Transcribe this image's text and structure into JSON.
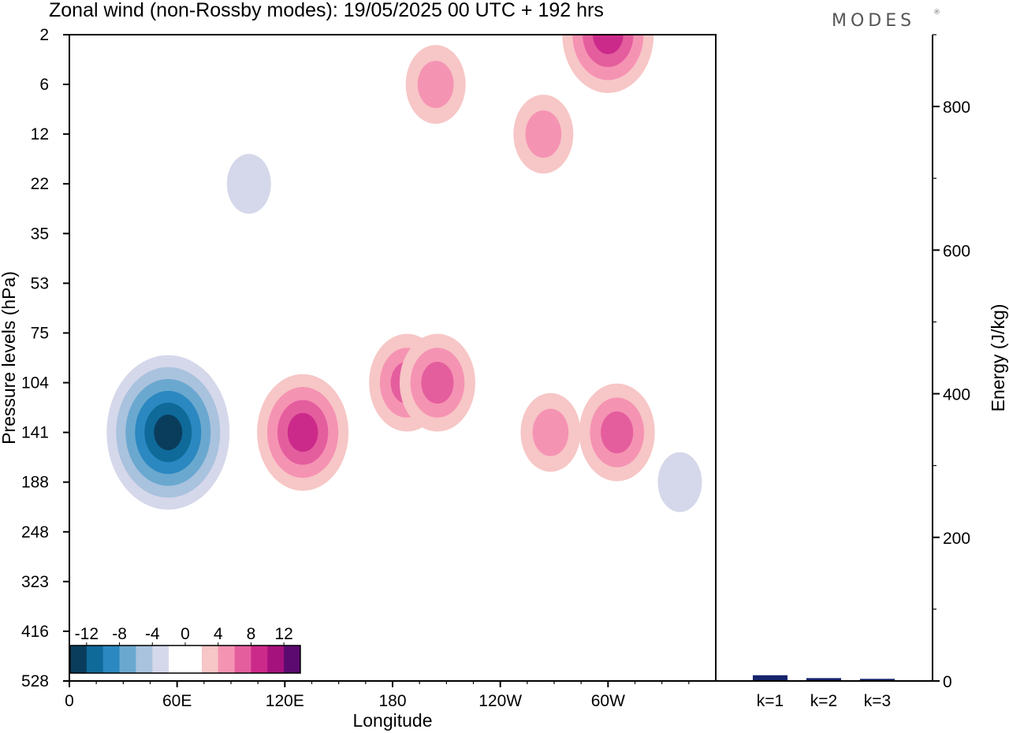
{
  "header": {
    "title": "Zonal wind (non-Rossby modes):  19/05/2025  00 UTC  + 192 hrs",
    "brand": "MODES",
    "brand_mark": "®"
  },
  "chart_data": [
    {
      "type": "heatmap",
      "title": "Zonal wind (non-Rossby modes):  19/05/2025  00 UTC  + 192 hrs",
      "xlabel": "Longitude",
      "ylabel": "Pressure levels (hPa)",
      "x_ticks": [
        "0",
        "60E",
        "120E",
        "180",
        "120W",
        "60W"
      ],
      "x_tick_values": [
        0,
        60,
        120,
        180,
        240,
        300
      ],
      "xlim": [
        0,
        360
      ],
      "y_ticks": [
        "2",
        "6",
        "12",
        "22",
        "35",
        "53",
        "75",
        "104",
        "141",
        "188",
        "248",
        "323",
        "416",
        "528"
      ],
      "y_scale": "categorical pressure levels, top to bottom",
      "colorbar": {
        "labels": [
          "-12",
          "-8",
          "-4",
          "0",
          "4",
          "8",
          "12"
        ],
        "levels": [
          -14,
          -12,
          -10,
          -8,
          -6,
          -4,
          -2,
          2,
          4,
          6,
          8,
          10,
          12,
          14
        ],
        "colors": [
          "#0a3d5c",
          "#0f6a9a",
          "#2b88c0",
          "#6aa8cf",
          "#a9c2de",
          "#d5d8ea",
          "#ffffff",
          "#ffffff",
          "#f7c6c6",
          "#f593b3",
          "#e45e9e",
          "#cc2a8a",
          "#a5127d",
          "#5c0a70"
        ],
        "position": "bottom-left inside plot"
      },
      "features": [
        {
          "lon": 55,
          "level": "141",
          "value": -14
        },
        {
          "lon": 100,
          "level": "22",
          "value": -4
        },
        {
          "lon": 300,
          "level": "2",
          "value": 10
        },
        {
          "lon": 130,
          "level": "141",
          "value": 10
        },
        {
          "lon": 188,
          "level": "104",
          "value": 8
        },
        {
          "lon": 205,
          "level": "104",
          "value": 8
        },
        {
          "lon": 268,
          "level": "141",
          "value": 6
        },
        {
          "lon": 305,
          "level": "141",
          "value": 8
        },
        {
          "lon": 204,
          "level": "6",
          "value": 6
        },
        {
          "lon": 264,
          "level": "12",
          "value": 6
        },
        {
          "lon": 340,
          "level": "188",
          "value": -4
        }
      ]
    },
    {
      "type": "bar",
      "categories": [
        "k=1",
        "k=2",
        "k=3"
      ],
      "values": [
        8,
        4,
        3
      ],
      "ylabel": "Energy (J/kg)",
      "ylim": [
        0,
        900
      ],
      "y_ticks": [
        "0",
        "200",
        "400",
        "600",
        "800"
      ],
      "y_tick_values": [
        0,
        200,
        400,
        600,
        800
      ],
      "bar_color": "#16236b",
      "axis_side": "right"
    }
  ]
}
